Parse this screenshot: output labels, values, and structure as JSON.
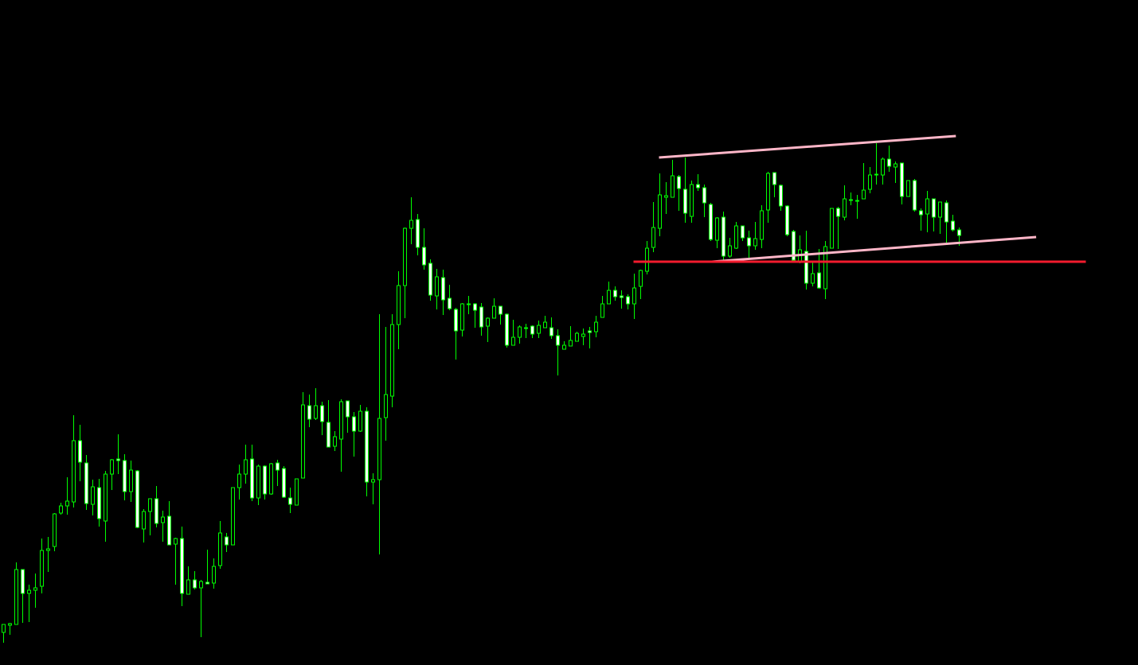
{
  "chart_data": {
    "type": "candlestick",
    "title": "",
    "xlabel": "",
    "ylabel": "",
    "x_axis": "candle index",
    "xlim": [
      1,
      178
    ],
    "ylim": [
      0,
      836
    ],
    "grid": false,
    "legend": "none",
    "background_color": "#000000",
    "colors": {
      "outline": "#00ff00",
      "bull_fill": "#000000",
      "bear_fill": "#ffffff",
      "channel_line": "#ffb6c8",
      "support_line": "#f21b2d"
    },
    "ohlc_fields": [
      "open",
      "high",
      "low",
      "close"
    ],
    "candles": [
      [
        41,
        51,
        28,
        51
      ],
      [
        50,
        53,
        38,
        52
      ],
      [
        51,
        129,
        51,
        120
      ],
      [
        120,
        120,
        53,
        90
      ],
      [
        90,
        101,
        54,
        94
      ],
      [
        94,
        115,
        72,
        97
      ],
      [
        99,
        159,
        90,
        144
      ],
      [
        144,
        161,
        117,
        146
      ],
      [
        149,
        191,
        143,
        190
      ],
      [
        191,
        204,
        189,
        200
      ],
      [
        200,
        236,
        189,
        206
      ],
      [
        205,
        314,
        198,
        282
      ],
      [
        282,
        302,
        231,
        255
      ],
      [
        254,
        264,
        195,
        203
      ],
      [
        202,
        233,
        188,
        224
      ],
      [
        223,
        234,
        174,
        184
      ],
      [
        181,
        244,
        155,
        240
      ],
      [
        240,
        259,
        220,
        258
      ],
      [
        259,
        290,
        240,
        257
      ],
      [
        257,
        265,
        207,
        218
      ],
      [
        218,
        257,
        205,
        245
      ],
      [
        244,
        245,
        172,
        173
      ],
      [
        171,
        196,
        154,
        193
      ],
      [
        193,
        209,
        163,
        209
      ],
      [
        209,
        225,
        173,
        178
      ],
      [
        179,
        194,
        155,
        186
      ],
      [
        187,
        206,
        151,
        151
      ],
      [
        152,
        160,
        101,
        159
      ],
      [
        159,
        174,
        74,
        90
      ],
      [
        89,
        124,
        89,
        107
      ],
      [
        107,
        118,
        95,
        97
      ],
      [
        97,
        107,
        35,
        105
      ],
      [
        104,
        145,
        102,
        102
      ],
      [
        103,
        134,
        96,
        124
      ],
      [
        125,
        181,
        121,
        166
      ],
      [
        161,
        166,
        142,
        151
      ],
      [
        151,
        223,
        151,
        223
      ],
      [
        223,
        252,
        208,
        240
      ],
      [
        240,
        277,
        228,
        258
      ],
      [
        259,
        277,
        206,
        210
      ],
      [
        210,
        252,
        201,
        250
      ],
      [
        250,
        251,
        208,
        215
      ],
      [
        215,
        254,
        214,
        253
      ],
      [
        254,
        258,
        225,
        245
      ],
      [
        247,
        250,
        210,
        211
      ],
      [
        210,
        223,
        191,
        202
      ],
      [
        201,
        234,
        201,
        234
      ],
      [
        235,
        343,
        235,
        327
      ],
      [
        326,
        340,
        299,
        309
      ],
      [
        310,
        348,
        308,
        326
      ],
      [
        326,
        331,
        289,
        306
      ],
      [
        305,
        333,
        274,
        274
      ],
      [
        275,
        294,
        269,
        287
      ],
      [
        284,
        334,
        243,
        331
      ],
      [
        332,
        332,
        292,
        312
      ],
      [
        312,
        318,
        262,
        294
      ],
      [
        294,
        327,
        293,
        319
      ],
      [
        319,
        324,
        212,
        230
      ],
      [
        230,
        241,
        202,
        233
      ],
      [
        233,
        441,
        139,
        310
      ],
      [
        311,
        425,
        282,
        340
      ],
      [
        338,
        441,
        324,
        428
      ],
      [
        428,
        495,
        397,
        477
      ],
      [
        477,
        550,
        436,
        549
      ],
      [
        549,
        588,
        529,
        559
      ],
      [
        560,
        567,
        515,
        525
      ],
      [
        525,
        549,
        497,
        503
      ],
      [
        505,
        510,
        458,
        465
      ],
      [
        464,
        498,
        447,
        488
      ],
      [
        487,
        497,
        440,
        459
      ],
      [
        461,
        478,
        446,
        448
      ],
      [
        447,
        449,
        384,
        420
      ],
      [
        421,
        455,
        413,
        454
      ],
      [
        454,
        464,
        441,
        454
      ],
      [
        454,
        455,
        424,
        446
      ],
      [
        450,
        455,
        414,
        425
      ],
      [
        426,
        437,
        406,
        436
      ],
      [
        436,
        461,
        436,
        451
      ],
      [
        451,
        451,
        428,
        441
      ],
      [
        441,
        442,
        399,
        402
      ],
      [
        402,
        434,
        402,
        412
      ],
      [
        412,
        427,
        404,
        425
      ],
      [
        424,
        429,
        411,
        424
      ],
      [
        426,
        427,
        411,
        416
      ],
      [
        417,
        433,
        411,
        427
      ],
      [
        424,
        439,
        424,
        431
      ],
      [
        424,
        437,
        410,
        414
      ],
      [
        414,
        422,
        364,
        402
      ],
      [
        397,
        407,
        397,
        402
      ],
      [
        401,
        426,
        401,
        408
      ],
      [
        407,
        419,
        407,
        417
      ],
      [
        413,
        423,
        402,
        416
      ],
      [
        420,
        425,
        398,
        418
      ],
      [
        419,
        439,
        412,
        431
      ],
      [
        437,
        464,
        437,
        454
      ],
      [
        454,
        482,
        454,
        471
      ],
      [
        471,
        476,
        458,
        463
      ],
      [
        464,
        471,
        448,
        462
      ],
      [
        463,
        466,
        447,
        454
      ],
      [
        454,
        492,
        435,
        474
      ],
      [
        476,
        497,
        460,
        496
      ],
      [
        495,
        533,
        491,
        524
      ],
      [
        525,
        582,
        519,
        550
      ],
      [
        549,
        618,
        539,
        591
      ],
      [
        588,
        607,
        567,
        590
      ],
      [
        588,
        635,
        588,
        615
      ],
      [
        614,
        616,
        571,
        599
      ],
      [
        598,
        638,
        556,
        568
      ],
      [
        564,
        609,
        556,
        604
      ],
      [
        604,
        617,
        596,
        600
      ],
      [
        600,
        604,
        563,
        581
      ],
      [
        579,
        581,
        533,
        535
      ],
      [
        534,
        563,
        524,
        562
      ],
      [
        563,
        570,
        509,
        514
      ],
      [
        514,
        537,
        512,
        527
      ],
      [
        524,
        557,
        523,
        552
      ],
      [
        552,
        552,
        533,
        537
      ],
      [
        537,
        546,
        510,
        527
      ],
      [
        527,
        557,
        522,
        536
      ],
      [
        535,
        578,
        524,
        571
      ],
      [
        572,
        620,
        556,
        618
      ],
      [
        619,
        619,
        588,
        604
      ],
      [
        603,
        604,
        571,
        577
      ],
      [
        577,
        578,
        539,
        541
      ],
      [
        545,
        547,
        506,
        509
      ],
      [
        508,
        540,
        505,
        522
      ],
      [
        520,
        546,
        472,
        480
      ],
      [
        480,
        506,
        476,
        492
      ],
      [
        493,
        523,
        473,
        474
      ],
      [
        473,
        533,
        460,
        526
      ],
      [
        524,
        574,
        524,
        574
      ],
      [
        574,
        576,
        523,
        564
      ],
      [
        563,
        603,
        559,
        586
      ],
      [
        584,
        594,
        578,
        585
      ],
      [
        584,
        591,
        561,
        584
      ],
      [
        586,
        631,
        586,
        597
      ],
      [
        598,
        626,
        593,
        616
      ],
      [
        617,
        656,
        604,
        617
      ],
      [
        616,
        638,
        604,
        636
      ],
      [
        636,
        653,
        620,
        627
      ],
      [
        626,
        633,
        606,
        630
      ],
      [
        631,
        631,
        579,
        589
      ],
      [
        589,
        609,
        589,
        609
      ],
      [
        609,
        611,
        570,
        572
      ],
      [
        571,
        574,
        546,
        566
      ],
      [
        567,
        596,
        544,
        586
      ],
      [
        586,
        586,
        545,
        563
      ],
      [
        563,
        582,
        542,
        582
      ],
      [
        581,
        584,
        531,
        557
      ],
      [
        558,
        566,
        545,
        547
      ],
      [
        547,
        550,
        527,
        540
      ]
    ],
    "trendlines": [
      {
        "role": "channel-upper",
        "color": "#ffb6c8",
        "from": [
          104,
          638
        ],
        "to": [
          150.6,
          665
        ]
      },
      {
        "role": "channel-lower",
        "color": "#ffb6c8",
        "from": [
          112.3,
          507
        ],
        "to": [
          163.2,
          538
        ]
      },
      {
        "role": "horizontal-support",
        "color": "#f21b2d",
        "from": [
          100,
          507
        ],
        "to": [
          171,
          507
        ]
      }
    ]
  }
}
